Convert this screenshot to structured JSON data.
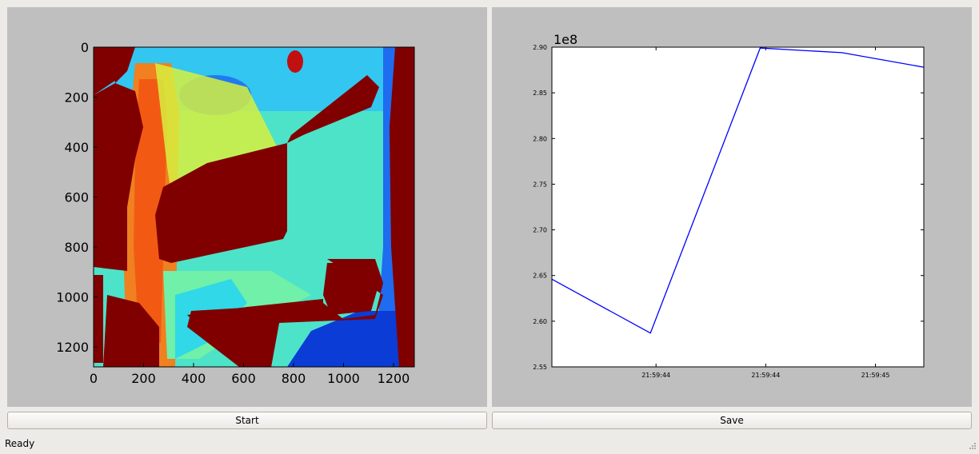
{
  "image_plot": {
    "x_ticks": [
      "0",
      "200",
      "400",
      "600",
      "800",
      "1000",
      "1200"
    ],
    "y_ticks": [
      "0",
      "200",
      "400",
      "600",
      "800",
      "1000",
      "1200"
    ],
    "colormap": "jet"
  },
  "chart_data": {
    "type": "line",
    "title": "",
    "xlabel": "",
    "ylabel": "",
    "offset_label": "1e8",
    "ylim": [
      2.55,
      2.9
    ],
    "y_ticks": [
      "2.55",
      "2.60",
      "2.65",
      "2.70",
      "2.75",
      "2.80",
      "2.85",
      "2.90"
    ],
    "x_tick_labels": [
      "21:59:44",
      "21:59:44",
      "21:59:45"
    ],
    "series": [
      {
        "color": "#0000ff",
        "points": [
          {
            "x": 0.0,
            "y": 2.646
          },
          {
            "x": 0.265,
            "y": 2.587
          },
          {
            "x": 0.56,
            "y": 2.899
          },
          {
            "x": 0.78,
            "y": 2.894
          },
          {
            "x": 1.0,
            "y": 2.878
          }
        ]
      }
    ]
  },
  "buttons": {
    "start": "Start",
    "save": "Save"
  },
  "status": "Ready"
}
